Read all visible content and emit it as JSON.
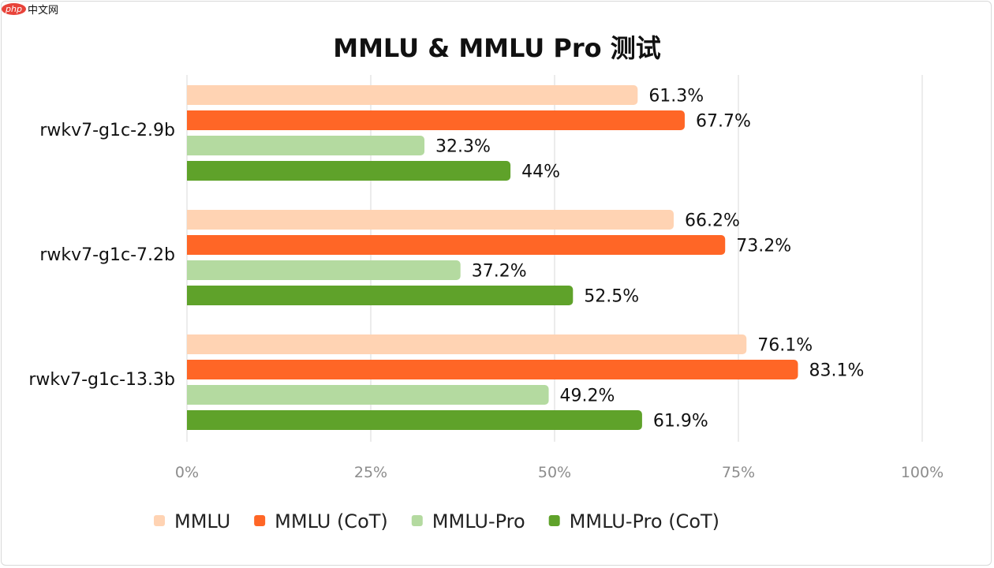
{
  "watermark": {
    "php": "php",
    "site": "中文网"
  },
  "chart_data": {
    "type": "bar",
    "orientation": "horizontal",
    "title": "MMLU & MMLU Pro 测试",
    "categories": [
      "rwkv7-g1c-2.9b",
      "rwkv7-g1c-7.2b",
      "rwkv7-g1c-13.3b"
    ],
    "series": [
      {
        "name": "MMLU",
        "color": "#FFD3B3",
        "values": [
          61.3,
          66.2,
          76.1
        ],
        "labels": [
          "61.3%",
          "66.2%",
          "76.1%"
        ]
      },
      {
        "name": "MMLU (CoT)",
        "color": "#FF6626",
        "values": [
          67.7,
          73.2,
          83.1
        ],
        "labels": [
          "67.7%",
          "73.2%",
          "83.1%"
        ]
      },
      {
        "name": "MMLU-Pro",
        "color": "#B4DAA0",
        "values": [
          32.3,
          37.2,
          49.2
        ],
        "labels": [
          "32.3%",
          "37.2%",
          "49.2%"
        ]
      },
      {
        "name": "MMLU-Pro (CoT)",
        "color": "#5FA22A",
        "values": [
          44,
          52.5,
          61.9
        ],
        "labels": [
          "44%",
          "52.5%",
          "61.9%"
        ]
      }
    ],
    "xlim": [
      0,
      100
    ],
    "xticks": [
      0,
      25,
      50,
      75,
      100
    ],
    "xtick_labels": [
      "0%",
      "25%",
      "50%",
      "75%",
      "100%"
    ],
    "grid": "vertical",
    "legend": "bottom"
  }
}
